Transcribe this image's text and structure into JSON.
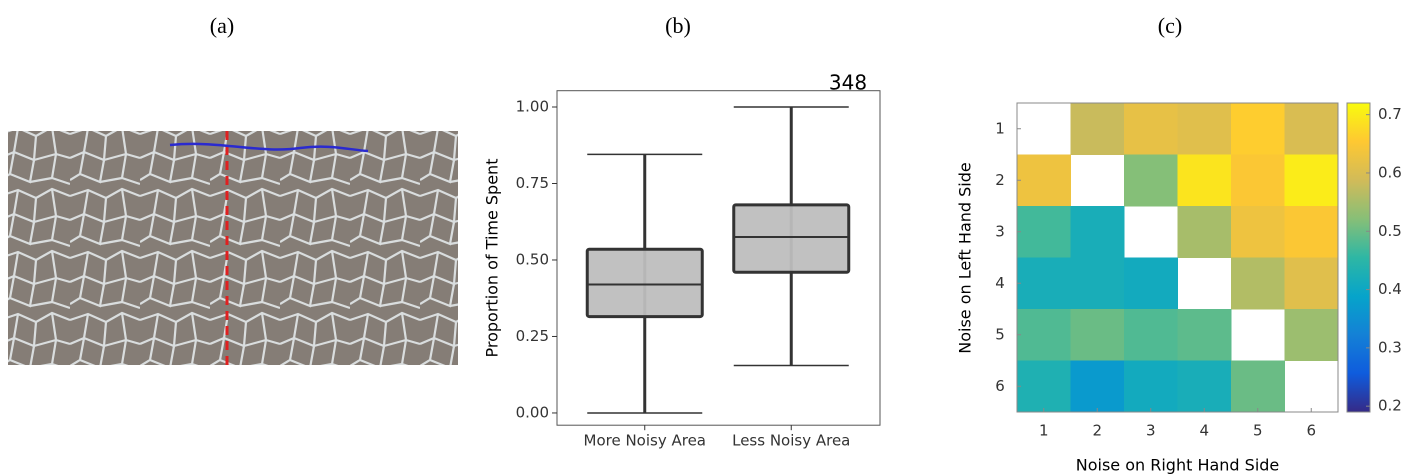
{
  "panels": [
    "(a)",
    "(b)",
    "(c)"
  ],
  "chart_data": [
    {
      "type": "box",
      "annotation": "348",
      "y_label": "Proportion of Time Spent",
      "categories": [
        "More Noisy Area",
        "Less Noisy Area"
      ],
      "whisker_low": [
        0.0,
        0.155
      ],
      "q1": [
        0.315,
        0.46
      ],
      "median": [
        0.42,
        0.575
      ],
      "q3": [
        0.535,
        0.68
      ],
      "whisker_high": [
        0.845,
        1.0
      ],
      "color": "#bebebe",
      "ylim": [
        -0.04,
        1.05
      ],
      "yticks": [
        {
          "value": 0,
          "label": "0.00"
        },
        {
          "value": 0.25,
          "label": "0.25"
        },
        {
          "value": 0.5,
          "label": "0.50"
        },
        {
          "value": 0.75,
          "label": "0.75"
        },
        {
          "value": 1,
          "label": "1.00"
        }
      ]
    },
    {
      "type": "heatmap",
      "x_label": "Noise on Right Hand Side",
      "y_label": "Noise on Left Hand Side",
      "x_categories": [
        "1",
        "2",
        "3",
        "4",
        "5",
        "6"
      ],
      "y_categories": [
        "1",
        "2",
        "3",
        "4",
        "5",
        "6"
      ],
      "values": [
        [
          null,
          0.58,
          0.62,
          0.61,
          0.66,
          0.6
        ],
        [
          0.63,
          null,
          0.52,
          0.69,
          0.65,
          0.7
        ],
        [
          0.47,
          0.42,
          null,
          0.55,
          0.63,
          0.65
        ],
        [
          0.42,
          0.42,
          0.41,
          null,
          0.56,
          0.61
        ],
        [
          0.48,
          0.5,
          0.48,
          0.49,
          null,
          0.54
        ],
        [
          0.43,
          0.37,
          0.41,
          0.42,
          0.5,
          null
        ]
      ],
      "colors": [
        "#352a87",
        "#0f5cdd",
        "#1481d6",
        "#06a4ca",
        "#2eb7a4",
        "#87bf77",
        "#d1bb59",
        "#fec832",
        "#f9fb0e"
      ],
      "clim": [
        0.19,
        0.72
      ],
      "cticks": [
        0.2,
        0.3,
        0.4,
        0.5,
        0.6,
        0.7
      ]
    }
  ]
}
